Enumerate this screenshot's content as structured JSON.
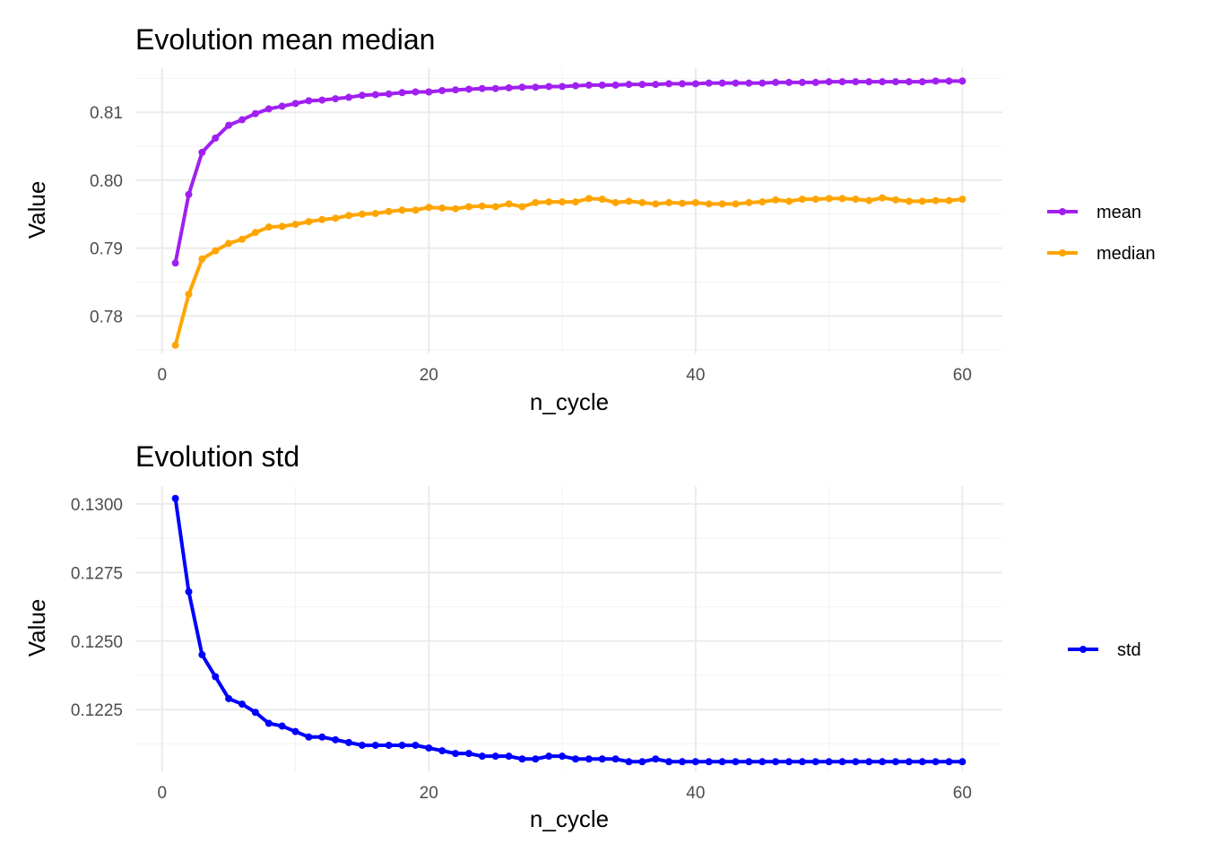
{
  "chart_data": [
    {
      "type": "line",
      "title": "Evolution mean median",
      "xlabel": "n_cycle",
      "ylabel": "Value",
      "xlim": [
        -2,
        63
      ],
      "ylim": [
        0.7745,
        0.8165
      ],
      "x_ticks": [
        0,
        20,
        40,
        60
      ],
      "x_tick_labels": [
        "0",
        "20",
        "40",
        "60"
      ],
      "y_ticks": [
        0.78,
        0.79,
        0.8,
        0.81
      ],
      "y_tick_labels": [
        "0.78",
        "0.79",
        "0.80",
        "0.81"
      ],
      "grid": true,
      "legend_position": "right",
      "x": [
        1,
        2,
        3,
        4,
        5,
        6,
        7,
        8,
        9,
        10,
        11,
        12,
        13,
        14,
        15,
        16,
        17,
        18,
        19,
        20,
        21,
        22,
        23,
        24,
        25,
        26,
        27,
        28,
        29,
        30,
        31,
        32,
        33,
        34,
        35,
        36,
        37,
        38,
        39,
        40,
        41,
        42,
        43,
        44,
        45,
        46,
        47,
        48,
        49,
        50,
        51,
        52,
        53,
        54,
        55,
        56,
        57,
        58,
        59,
        60
      ],
      "series": [
        {
          "name": "mean",
          "color": "#A020F0",
          "values": [
            0.7878,
            0.7979,
            0.8041,
            0.8062,
            0.8081,
            0.8089,
            0.8098,
            0.8105,
            0.8109,
            0.8113,
            0.8117,
            0.8118,
            0.812,
            0.8122,
            0.8125,
            0.8126,
            0.8127,
            0.8129,
            0.813,
            0.813,
            0.8132,
            0.8133,
            0.8134,
            0.8135,
            0.8135,
            0.8136,
            0.8137,
            0.8137,
            0.8138,
            0.8138,
            0.8139,
            0.814,
            0.814,
            0.814,
            0.8141,
            0.8141,
            0.8141,
            0.8142,
            0.8142,
            0.8142,
            0.8143,
            0.8143,
            0.8143,
            0.8143,
            0.8143,
            0.8144,
            0.8144,
            0.8144,
            0.8144,
            0.8145,
            0.8145,
            0.8145,
            0.8145,
            0.8145,
            0.8145,
            0.8145,
            0.8145,
            0.8146,
            0.8146,
            0.8146
          ]
        },
        {
          "name": "median",
          "color": "#FFA500",
          "values": [
            0.7757,
            0.7832,
            0.7884,
            0.7896,
            0.7907,
            0.7913,
            0.7923,
            0.7931,
            0.7932,
            0.7935,
            0.7939,
            0.7942,
            0.7944,
            0.7948,
            0.795,
            0.7951,
            0.7954,
            0.7956,
            0.7956,
            0.796,
            0.7959,
            0.7958,
            0.7961,
            0.7962,
            0.7961,
            0.7965,
            0.7961,
            0.7967,
            0.7968,
            0.7968,
            0.7968,
            0.7973,
            0.7972,
            0.7967,
            0.7969,
            0.7967,
            0.7965,
            0.7967,
            0.7966,
            0.7967,
            0.7965,
            0.7965,
            0.7965,
            0.7967,
            0.7968,
            0.7971,
            0.7969,
            0.7972,
            0.7972,
            0.7973,
            0.7973,
            0.7972,
            0.797,
            0.7974,
            0.7971,
            0.7969,
            0.7969,
            0.797,
            0.797,
            0.7972
          ]
        }
      ]
    },
    {
      "type": "line",
      "title": "Evolution std",
      "xlabel": "n_cycle",
      "ylabel": "Value",
      "xlim": [
        -2,
        63
      ],
      "ylim": [
        0.12025,
        0.13065
      ],
      "x_ticks": [
        0,
        20,
        40,
        60
      ],
      "x_tick_labels": [
        "0",
        "20",
        "40",
        "60"
      ],
      "y_ticks": [
        0.1225,
        0.125,
        0.1275,
        0.13
      ],
      "y_tick_labels": [
        "0.1225",
        "0.1250",
        "0.1275",
        "0.1300"
      ],
      "grid": true,
      "legend_position": "right",
      "x": [
        1,
        2,
        3,
        4,
        5,
        6,
        7,
        8,
        9,
        10,
        11,
        12,
        13,
        14,
        15,
        16,
        17,
        18,
        19,
        20,
        21,
        22,
        23,
        24,
        25,
        26,
        27,
        28,
        29,
        30,
        31,
        32,
        33,
        34,
        35,
        36,
        37,
        38,
        39,
        40,
        41,
        42,
        43,
        44,
        45,
        46,
        47,
        48,
        49,
        50,
        51,
        52,
        53,
        54,
        55,
        56,
        57,
        58,
        59,
        60
      ],
      "series": [
        {
          "name": "std",
          "color": "#0000FF",
          "values": [
            0.1302,
            0.1268,
            0.1245,
            0.1237,
            0.1229,
            0.1227,
            0.1224,
            0.122,
            0.1219,
            0.1217,
            0.1215,
            0.1215,
            0.1214,
            0.1213,
            0.1212,
            0.1212,
            0.1212,
            0.1212,
            0.1212,
            0.1211,
            0.121,
            0.1209,
            0.1209,
            0.1208,
            0.1208,
            0.1208,
            0.1207,
            0.1207,
            0.1208,
            0.1208,
            0.1207,
            0.1207,
            0.1207,
            0.1207,
            0.1206,
            0.1206,
            0.1207,
            0.1206,
            0.1206,
            0.1206,
            0.1206,
            0.1206,
            0.1206,
            0.1206,
            0.1206,
            0.1206,
            0.1206,
            0.1206,
            0.1206,
            0.1206,
            0.1206,
            0.1206,
            0.1206,
            0.1206,
            0.1206,
            0.1206,
            0.1206,
            0.1206,
            0.1206,
            0.1206
          ]
        }
      ]
    }
  ]
}
